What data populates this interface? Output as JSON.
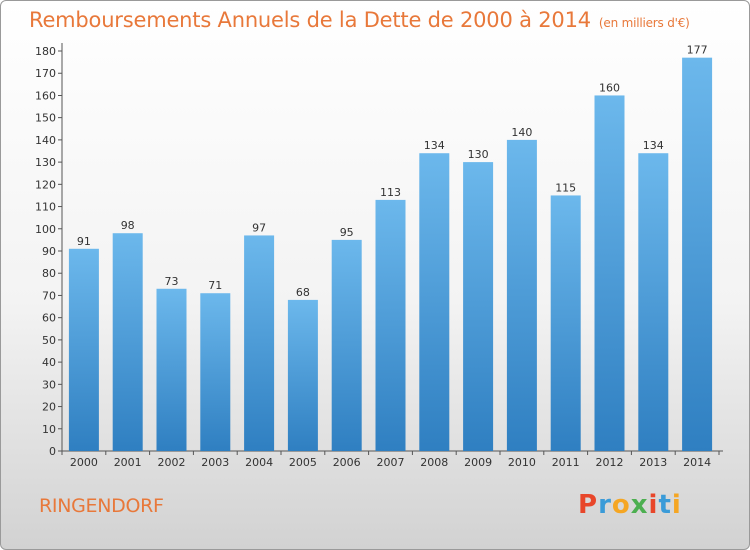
{
  "header": {
    "title": "Remboursements Annuels de la Dette de 2000 à 2014",
    "unit": "(en milliers d'€)"
  },
  "footer": {
    "city": "RINGENDORF",
    "brand_letters": [
      "P",
      "r",
      "o",
      "x",
      "i",
      "t",
      "i"
    ],
    "brand_colors": [
      "#e8462a",
      "#3a9bd8",
      "#f5a623",
      "#4caf50",
      "#e8462a",
      "#3a9bd8",
      "#f5a623"
    ]
  },
  "colors": {
    "bar_light": "#6cb8ec",
    "bar_dark": "#2f7fc1",
    "accent": "#e8783a"
  },
  "chart_data": {
    "type": "bar",
    "categories": [
      "2000",
      "2001",
      "2002",
      "2003",
      "2004",
      "2005",
      "2006",
      "2007",
      "2008",
      "2009",
      "2010",
      "2011",
      "2012",
      "2013",
      "2014"
    ],
    "values": [
      91,
      98,
      73,
      71,
      97,
      68,
      95,
      113,
      134,
      130,
      140,
      115,
      160,
      134,
      177
    ],
    "title": "Remboursements Annuels de la Dette de 2000 à 2014",
    "ylim": [
      0,
      180
    ],
    "yticks": [
      0,
      10,
      20,
      30,
      40,
      50,
      60,
      70,
      80,
      90,
      100,
      110,
      120,
      130,
      140,
      150,
      160,
      170,
      180
    ],
    "grid": false,
    "legend": "none"
  }
}
